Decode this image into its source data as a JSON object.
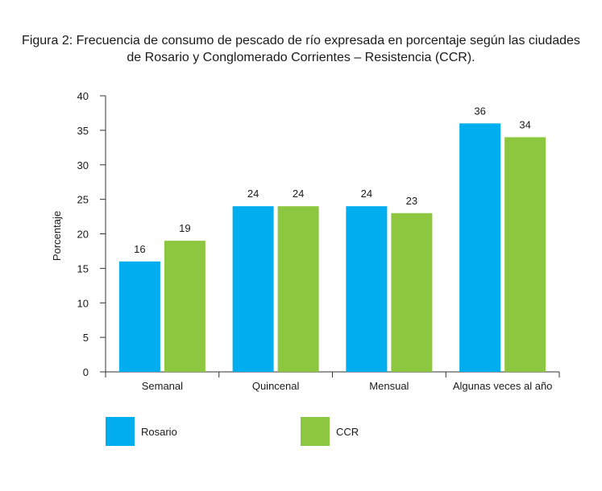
{
  "title": {
    "line1": "Figura 2: Frecuencia de consumo de pescado de río expresada en porcentaje según las ciudades",
    "line2": "de Rosario y Conglomerado Corrientes – Resistencia (CCR)."
  },
  "colors": {
    "rosario": "#00AEEF",
    "ccr": "#8DC63F",
    "axis": "#333333"
  },
  "chart_data": {
    "type": "bar",
    "categories": [
      "Semanal",
      "Quincenal",
      "Mensual",
      "Algunas veces al año"
    ],
    "series": [
      {
        "name": "Rosario",
        "values": [
          16,
          24,
          24,
          36
        ]
      },
      {
        "name": "CCR",
        "values": [
          19,
          24,
          23,
          34
        ]
      }
    ],
    "ylabel": "Porcentaje",
    "xlabel": "",
    "ylim": [
      0,
      40
    ],
    "yticks": [
      0,
      5,
      10,
      15,
      20,
      25,
      30,
      35,
      40
    ],
    "grid": false,
    "legend_position": "bottom"
  }
}
